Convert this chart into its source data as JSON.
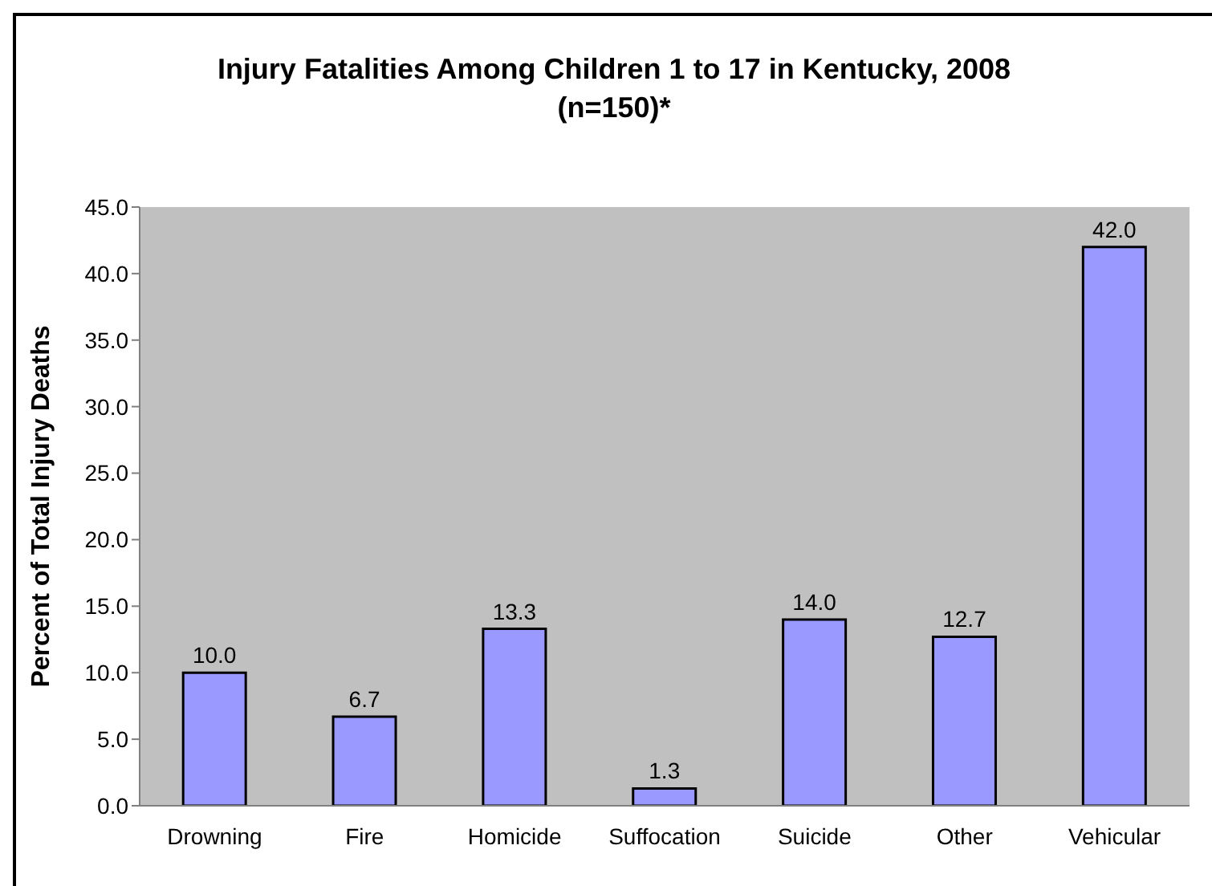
{
  "chart_data": {
    "type": "bar",
    "title": "Injury Fatalities Among Children 1 to 17 in Kentucky, 2008",
    "subtitle": "(n=150)*",
    "ylabel": "Percent of Total Injury Deaths",
    "categories": [
      "Drowning",
      "Fire",
      "Homicide",
      "Suffocation",
      "Suicide",
      "Other",
      "Vehicular"
    ],
    "values": [
      10.0,
      6.7,
      13.3,
      1.3,
      14.0,
      12.7,
      42.0
    ],
    "color": "#9999ff",
    "value_labels": [
      "10.0",
      "6.7",
      "13.3",
      "1.3",
      "14.0",
      "12.7",
      "42.0"
    ],
    "ylim": [
      0,
      45
    ],
    "yticks": [
      {
        "value": 0,
        "label": "0.0"
      },
      {
        "value": 5,
        "label": "5.0"
      },
      {
        "value": 10,
        "label": "10.0"
      },
      {
        "value": 15,
        "label": "15.0"
      },
      {
        "value": 20,
        "label": "20.0"
      },
      {
        "value": 25,
        "label": "25.0"
      },
      {
        "value": 30,
        "label": "30.0"
      },
      {
        "value": 35,
        "label": "35.0"
      },
      {
        "value": 40,
        "label": "40.0"
      },
      {
        "value": 45,
        "label": "45.0"
      }
    ]
  }
}
